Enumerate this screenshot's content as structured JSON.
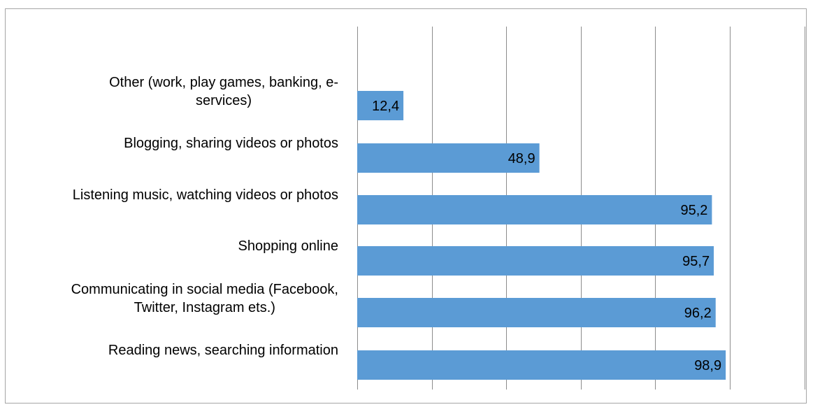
{
  "chart_data": {
    "type": "bar",
    "orientation": "horizontal",
    "categories": [
      "Other (work, play games, banking, e-services)",
      "Blogging, sharing videos or photos",
      "Listening music, watching videos or photos",
      "Shopping online",
      "Communicating in social media (Facebook, Twitter, Instagram ets.)",
      "Reading news, searching information"
    ],
    "category_lines": [
      [
        "Other (work, play games, banking, e-",
        "services)"
      ],
      [
        "Blogging, sharing videos or photos"
      ],
      [
        "Listening music, watching videos or photos"
      ],
      [
        "Shopping online"
      ],
      [
        "Communicating in social media (Facebook,",
        "Twitter, Instagram ets.)"
      ],
      [
        "Reading news, searching information"
      ]
    ],
    "values": [
      12.4,
      48.9,
      95.2,
      95.7,
      96.2,
      98.9
    ],
    "value_labels": [
      "12,4",
      "48,9",
      "95,2",
      "95,7",
      "96,2",
      "98,9"
    ],
    "xlim": [
      0,
      120
    ],
    "grid_step": 20,
    "grid": true,
    "legend": false,
    "title": "",
    "xlabel": "",
    "ylabel": "",
    "bar_color": "#5b9bd5",
    "grid_color": "#8c8c8c",
    "border_color": "#a6a6a6"
  }
}
